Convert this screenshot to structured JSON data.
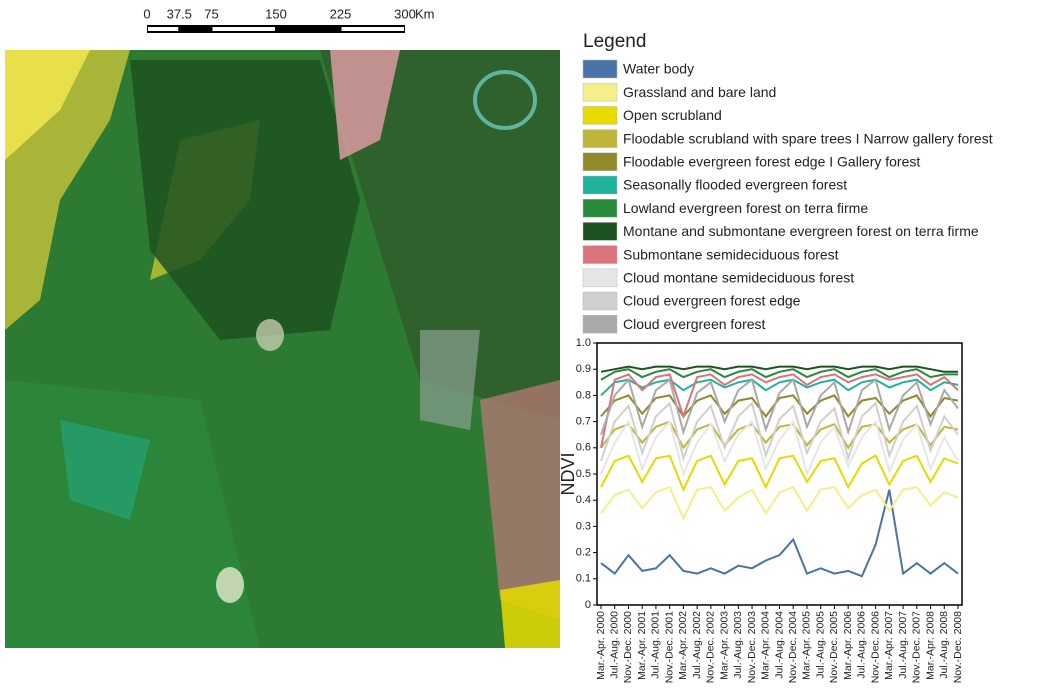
{
  "scale_bar": {
    "ticks": [
      0,
      37.5,
      75,
      150,
      225,
      300
    ],
    "unit": "Km"
  },
  "legend_title": "Legend",
  "chart_data": {
    "type": "line",
    "y_label": "NDVI",
    "categories": [
      "Mar.-Apr. 2000",
      "Jul.-Aug. 2000",
      "Nov.-Dec. 2000",
      "Mar.-Apr. 2001",
      "Jul.-Aug. 2001",
      "Nov.-Dec. 2001",
      "Mar.-Apr. 2002",
      "Jul.-Aug. 2002",
      "Nov.-Dec. 2002",
      "Mar.-Apr. 2003",
      "Jul.-Aug. 2003",
      "Nov.-Dec. 2003",
      "Mar.-Apr. 2004",
      "Jul.-Aug. 2004",
      "Nov.-Dec. 2004",
      "Mar.-Apr. 2005",
      "Jul.-Aug. 2005",
      "Nov.-Dec. 2005",
      "Mar.-Apr. 2006",
      "Jul.-Aug. 2006",
      "Nov.-Dec. 2006",
      "Mar.-Apr. 2007",
      "Jul.-Aug. 2007",
      "Nov.-Dec. 2007",
      "Mar.-Apr. 2008",
      "Jul.-Aug. 2008",
      "Nov.-Dec. 2008"
    ],
    "ylim": [
      0,
      1
    ],
    "yticks": [
      0,
      0.1,
      0.2,
      0.3,
      0.4,
      0.5,
      0.6,
      0.7,
      0.8,
      0.9,
      {
        "value": 1,
        "label": "1.0"
      }
    ],
    "series": [
      {
        "name": "Water body",
        "color": "#4a73a8",
        "values": [
          0.16,
          0.12,
          0.19,
          0.13,
          0.14,
          0.19,
          0.13,
          0.12,
          0.14,
          0.12,
          0.15,
          0.14,
          0.17,
          0.19,
          0.25,
          0.12,
          0.14,
          0.12,
          0.13,
          0.11,
          0.23,
          0.44,
          0.12,
          0.16,
          0.12,
          0.16,
          0.12
        ]
      },
      {
        "name": "Grassland and bare land",
        "color": "#f5ee8a",
        "values": [
          0.35,
          0.42,
          0.44,
          0.37,
          0.43,
          0.45,
          0.33,
          0.44,
          0.45,
          0.36,
          0.41,
          0.44,
          0.35,
          0.43,
          0.45,
          0.36,
          0.44,
          0.45,
          0.37,
          0.42,
          0.44,
          0.36,
          0.44,
          0.45,
          0.38,
          0.43,
          0.41
        ]
      },
      {
        "name": "Open scrubland",
        "color": "#e6da00",
        "values": [
          0.45,
          0.55,
          0.57,
          0.47,
          0.56,
          0.57,
          0.44,
          0.55,
          0.57,
          0.46,
          0.55,
          0.56,
          0.45,
          0.56,
          0.57,
          0.47,
          0.55,
          0.56,
          0.45,
          0.54,
          0.57,
          0.46,
          0.55,
          0.57,
          0.47,
          0.56,
          0.54
        ]
      },
      {
        "name": "Floodable scrubland with spare trees I Narrow gallery forest",
        "color": "#bfb53a",
        "values": [
          0.6,
          0.67,
          0.69,
          0.62,
          0.68,
          0.7,
          0.6,
          0.67,
          0.69,
          0.61,
          0.67,
          0.69,
          0.62,
          0.68,
          0.69,
          0.61,
          0.67,
          0.69,
          0.6,
          0.68,
          0.69,
          0.62,
          0.67,
          0.69,
          0.61,
          0.68,
          0.67
        ]
      },
      {
        "name": "Floodable evergreen forest edge I Gallery forest",
        "color": "#918a2a",
        "values": [
          0.72,
          0.78,
          0.8,
          0.73,
          0.79,
          0.8,
          0.72,
          0.78,
          0.8,
          0.73,
          0.78,
          0.79,
          0.72,
          0.79,
          0.8,
          0.73,
          0.78,
          0.8,
          0.72,
          0.78,
          0.79,
          0.73,
          0.78,
          0.8,
          0.72,
          0.79,
          0.78
        ]
      },
      {
        "name": "Seasonally flooded evergreen forest",
        "color": "#1fb39b",
        "values": [
          0.8,
          0.85,
          0.86,
          0.83,
          0.85,
          0.86,
          0.82,
          0.85,
          0.86,
          0.83,
          0.85,
          0.86,
          0.82,
          0.85,
          0.86,
          0.83,
          0.85,
          0.86,
          0.82,
          0.85,
          0.86,
          0.83,
          0.85,
          0.86,
          0.82,
          0.85,
          0.84
        ]
      },
      {
        "name": "Lowland evergreen forest on terra firme",
        "color": "#2a8a3c",
        "values": [
          0.86,
          0.89,
          0.9,
          0.87,
          0.89,
          0.9,
          0.87,
          0.89,
          0.9,
          0.87,
          0.89,
          0.9,
          0.87,
          0.89,
          0.9,
          0.87,
          0.89,
          0.9,
          0.87,
          0.89,
          0.9,
          0.87,
          0.89,
          0.9,
          0.87,
          0.88,
          0.88
        ]
      },
      {
        "name": "Montane and submontane evergreen forest on terra firme",
        "color": "#1d5221",
        "values": [
          0.89,
          0.9,
          0.91,
          0.9,
          0.91,
          0.91,
          0.9,
          0.91,
          0.91,
          0.9,
          0.91,
          0.91,
          0.9,
          0.91,
          0.91,
          0.9,
          0.91,
          0.91,
          0.9,
          0.91,
          0.91,
          0.9,
          0.91,
          0.91,
          0.9,
          0.89,
          0.89
        ]
      },
      {
        "name": "Submontane semideciduous forest",
        "color": "#d9747a",
        "values": [
          0.6,
          0.86,
          0.88,
          0.82,
          0.87,
          0.88,
          0.72,
          0.87,
          0.88,
          0.84,
          0.87,
          0.88,
          0.85,
          0.87,
          0.88,
          0.84,
          0.87,
          0.88,
          0.85,
          0.87,
          0.88,
          0.86,
          0.87,
          0.88,
          0.84,
          0.87,
          0.82
        ]
      },
      {
        "name": "Cloud montane semideciduous forest",
        "color": "#e6e6e6",
        "values": [
          0.5,
          0.62,
          0.7,
          0.52,
          0.64,
          0.7,
          0.5,
          0.62,
          0.69,
          0.55,
          0.65,
          0.7,
          0.52,
          0.63,
          0.7,
          0.5,
          0.62,
          0.68,
          0.53,
          0.64,
          0.7,
          0.51,
          0.63,
          0.69,
          0.52,
          0.64,
          0.55
        ]
      },
      {
        "name": "Cloud evergreen forest edge",
        "color": "#cfcfcf",
        "values": [
          0.55,
          0.7,
          0.76,
          0.58,
          0.72,
          0.77,
          0.56,
          0.7,
          0.76,
          0.6,
          0.72,
          0.77,
          0.57,
          0.71,
          0.76,
          0.58,
          0.7,
          0.75,
          0.56,
          0.72,
          0.77,
          0.57,
          0.7,
          0.76,
          0.59,
          0.72,
          0.65
        ]
      },
      {
        "name": "Cloud evergreen forest",
        "color": "#a9a9a9",
        "values": [
          0.65,
          0.8,
          0.86,
          0.68,
          0.82,
          0.86,
          0.66,
          0.81,
          0.85,
          0.7,
          0.82,
          0.86,
          0.67,
          0.81,
          0.86,
          0.68,
          0.8,
          0.85,
          0.66,
          0.82,
          0.86,
          0.67,
          0.8,
          0.85,
          0.69,
          0.82,
          0.75
        ]
      }
    ]
  }
}
